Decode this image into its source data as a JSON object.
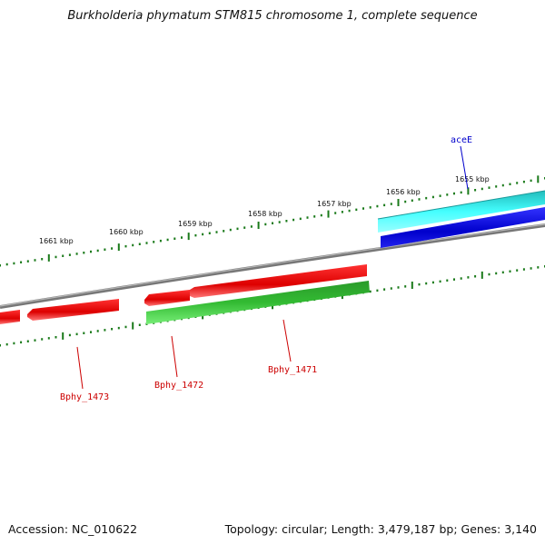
{
  "title": "Burkholderia phymatum STM815 chromosome 1, complete sequence",
  "footer": {
    "accession": "Accession: NC_010622",
    "summary": "Topology: circular; Length: 3,479,187 bp; Genes: 3,140"
  },
  "colors": {
    "backbone": "#888888",
    "tick": "#1a7a1a",
    "forward_gene": "#ee1111",
    "reverse_cds": "#33bb33",
    "ace_gene": "#22dddd",
    "ace_cds": "#1111dd",
    "label_red": "#cc0000",
    "label_blue": "#0000cc"
  },
  "scale": {
    "tick_labels": [
      "1655 kbp",
      "1656 kbp",
      "1657 kbp",
      "1658 kbp",
      "1659 kbp",
      "1660 kbp",
      "1661 kbp"
    ]
  },
  "genes": [
    {
      "label": "aceE",
      "strand": "+",
      "color": "blue"
    },
    {
      "label": "Bphy_1471",
      "strand": "-",
      "color": "red"
    },
    {
      "label": "Bphy_1472",
      "strand": "-",
      "color": "red"
    },
    {
      "label": "Bphy_1473",
      "strand": "-",
      "color": "red"
    }
  ]
}
